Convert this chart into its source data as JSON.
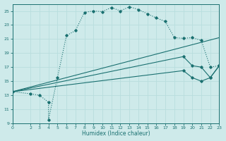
{
  "xlabel": "Humidex (Indice chaleur)",
  "xlim": [
    0,
    23
  ],
  "ylim": [
    9,
    26
  ],
  "yticks": [
    9,
    11,
    13,
    15,
    17,
    19,
    21,
    23,
    25
  ],
  "xticks": [
    0,
    2,
    3,
    4,
    5,
    6,
    7,
    8,
    9,
    10,
    11,
    12,
    13,
    14,
    15,
    16,
    17,
    18,
    19,
    20,
    21,
    22,
    23
  ],
  "bg_color": "#ceeaea",
  "line_color": "#1a7070",
  "grid_color": "#b8dede",
  "line1_x": [
    0,
    2,
    3,
    4,
    4,
    5,
    6,
    7,
    8,
    9,
    10,
    11,
    12,
    13,
    14,
    15,
    16,
    17,
    18,
    19,
    20,
    21,
    22,
    23
  ],
  "line1_y": [
    13.5,
    13.2,
    13.0,
    12.0,
    9.5,
    15.5,
    21.5,
    22.2,
    24.8,
    25.0,
    24.9,
    25.5,
    25.0,
    25.6,
    25.2,
    24.6,
    24.0,
    23.5,
    21.2,
    21.1,
    21.2,
    20.8,
    17.0,
    17.2
  ],
  "line1_markers_x": [
    0,
    2,
    3,
    4,
    4,
    5,
    6,
    7,
    8,
    9,
    10,
    11,
    12,
    13,
    14,
    15,
    16,
    17,
    18,
    19,
    20,
    21,
    22,
    23
  ],
  "line1_markers_y": [
    13.5,
    13.2,
    13.0,
    12.0,
    9.5,
    15.5,
    21.5,
    22.2,
    24.8,
    25.0,
    24.9,
    25.5,
    25.0,
    25.6,
    25.2,
    24.6,
    24.0,
    23.5,
    21.2,
    21.1,
    21.2,
    20.8,
    17.0,
    17.2
  ],
  "line2_x": [
    0,
    23
  ],
  "line2_y": [
    13.5,
    21.2
  ],
  "line3_x": [
    0,
    19,
    20,
    21,
    22,
    23
  ],
  "line3_y": [
    13.5,
    18.5,
    17.2,
    17.0,
    15.5,
    17.2
  ],
  "line3_markers_x": [
    19,
    20,
    21,
    22,
    23
  ],
  "line3_markers_y": [
    18.5,
    17.2,
    17.0,
    15.5,
    17.2
  ],
  "line4_x": [
    0,
    19,
    20,
    21,
    22,
    23
  ],
  "line4_y": [
    13.5,
    16.5,
    15.5,
    15.0,
    15.5,
    17.2
  ],
  "line4_markers_x": [
    19,
    20,
    21,
    22,
    23
  ],
  "line4_markers_y": [
    16.5,
    15.5,
    15.0,
    15.5,
    17.2
  ]
}
